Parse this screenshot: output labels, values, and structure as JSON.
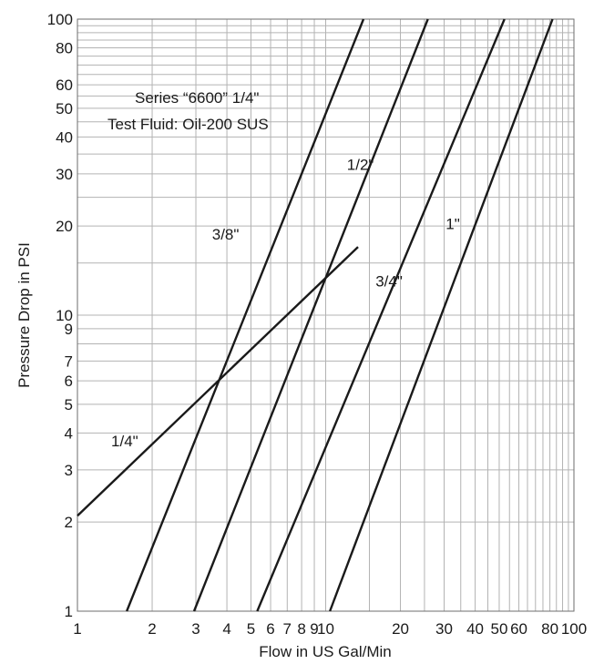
{
  "chart_data": {
    "type": "line",
    "x_scale": "log",
    "y_scale": "log",
    "xlim": [
      1,
      100
    ],
    "ylim": [
      1,
      100
    ],
    "grid": true,
    "xlabel": "Flow in US Gal/Min",
    "ylabel": "Pressure Drop in PSI",
    "annotation_lines": [
      "Series “6600” 1/4\"",
      "Test Fluid: Oil-200 SUS"
    ],
    "x_ticks": [
      {
        "value": 1,
        "label": "1"
      },
      {
        "value": 2,
        "label": "2"
      },
      {
        "value": 3,
        "label": "3"
      },
      {
        "value": 4,
        "label": "4"
      },
      {
        "value": 5,
        "label": "5"
      },
      {
        "value": 6,
        "label": "6"
      },
      {
        "value": 7,
        "label": "7"
      },
      {
        "value": 8,
        "label": "8"
      },
      {
        "value": 9,
        "label": "9"
      },
      {
        "value": 10,
        "label": "10"
      },
      {
        "value": 20,
        "label": "20"
      },
      {
        "value": 30,
        "label": "30"
      },
      {
        "value": 40,
        "label": "40"
      },
      {
        "value": 50,
        "label": "50"
      },
      {
        "value": 60,
        "label": "60"
      },
      {
        "value": 80,
        "label": "80"
      },
      {
        "value": 100,
        "label": "100"
      }
    ],
    "y_ticks": [
      {
        "value": 1,
        "label": "1"
      },
      {
        "value": 2,
        "label": "2"
      },
      {
        "value": 3,
        "label": "3"
      },
      {
        "value": 4,
        "label": "4"
      },
      {
        "value": 5,
        "label": "5"
      },
      {
        "value": 6,
        "label": "6"
      },
      {
        "value": 7,
        "label": "7"
      },
      {
        "value": 9,
        "label": "9"
      },
      {
        "value": 10,
        "label": "10"
      },
      {
        "value": 20,
        "label": "20"
      },
      {
        "value": 30,
        "label": "30"
      },
      {
        "value": 40,
        "label": "40"
      },
      {
        "value": 50,
        "label": "50"
      },
      {
        "value": 60,
        "label": "60"
      },
      {
        "value": 80,
        "label": "80"
      },
      {
        "value": 100,
        "label": "100"
      }
    ],
    "x_grid": [
      1,
      2,
      3,
      4,
      5,
      6,
      7,
      8,
      9,
      10,
      15,
      20,
      25,
      30,
      35,
      40,
      45,
      50,
      55,
      60,
      65,
      70,
      75,
      80,
      85,
      90,
      95,
      100
    ],
    "y_grid": [
      1,
      2,
      3,
      4,
      5,
      6,
      7,
      8,
      9,
      10,
      15,
      20,
      25,
      30,
      35,
      40,
      45,
      50,
      55,
      60,
      65,
      70,
      75,
      80,
      85,
      90,
      95,
      100
    ],
    "series": [
      {
        "name": "1/4\"",
        "x": [
          1.0,
          13.5
        ],
        "y": [
          2.1,
          17.0
        ],
        "label_at": [
          1.55,
          3.6
        ]
      },
      {
        "name": "3/8\"",
        "x": [
          1.58,
          14.2
        ],
        "y": [
          1.0,
          100.0
        ],
        "label_at": [
          3.95,
          18.0
        ]
      },
      {
        "name": "1/2\"",
        "x": [
          2.95,
          25.8
        ],
        "y": [
          1.0,
          100.0
        ],
        "label_at": [
          13.8,
          31.0
        ]
      },
      {
        "name": "3/4\"",
        "x": [
          5.3,
          52.5
        ],
        "y": [
          1.0,
          100.0
        ],
        "label_at": [
          18.0,
          12.5
        ]
      },
      {
        "name": "1\"",
        "x": [
          10.4,
          82.0
        ],
        "y": [
          1.0,
          100.0
        ],
        "label_at": [
          32.5,
          19.5
        ]
      }
    ]
  }
}
